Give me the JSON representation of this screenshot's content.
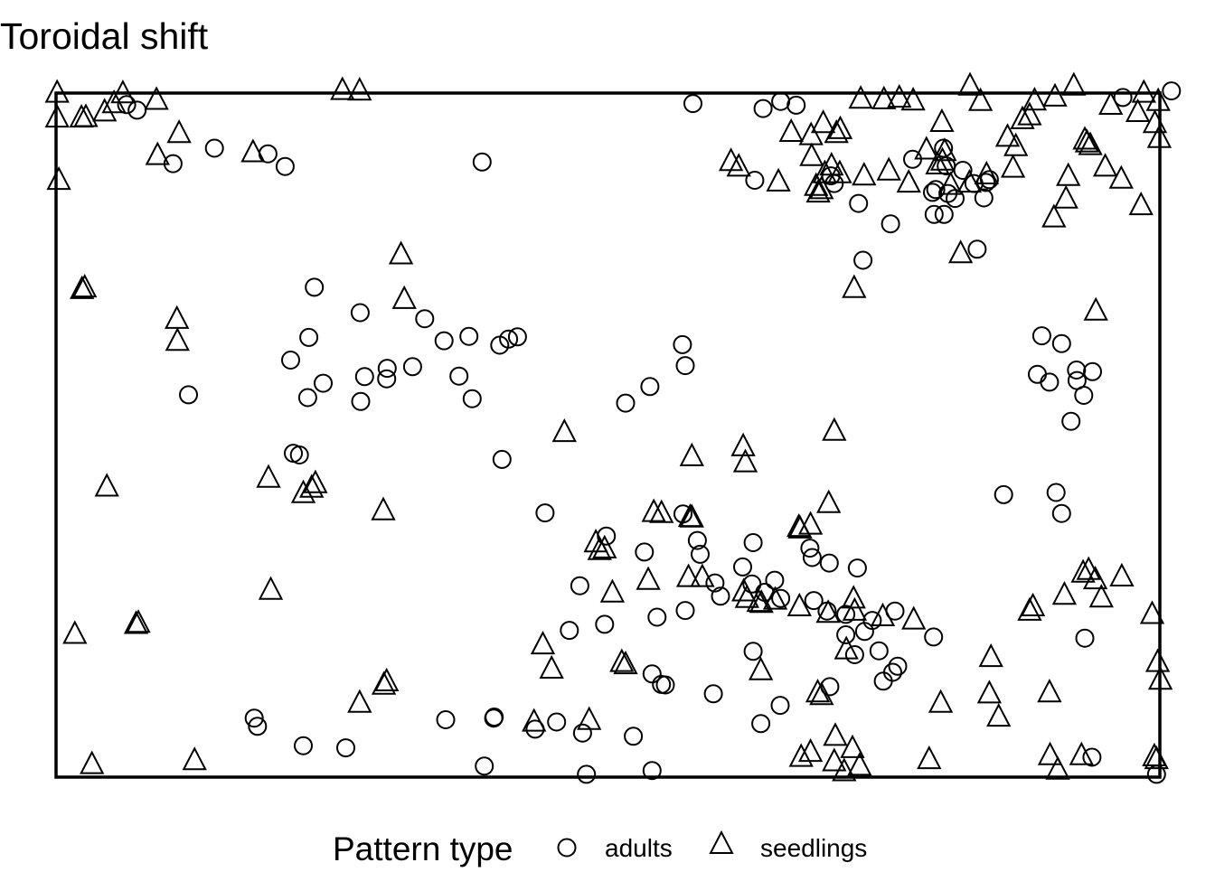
{
  "chart_data": {
    "type": "scatter",
    "title": "Toroidal shift",
    "xlabel": "",
    "ylabel": "",
    "xlim": [
      0,
      200
    ],
    "ylim": [
      0,
      124
    ],
    "axes_visible": false,
    "grid": false,
    "legend": {
      "title": "Pattern type",
      "placement": "bottom",
      "entries": [
        {
          "label": "adults",
          "marker": "circle"
        },
        {
          "label": "seedlings",
          "marker": "triangle"
        }
      ]
    },
    "series": [
      {
        "name": "adults",
        "marker": "circle",
        "color": "#000000",
        "points": [
          [
            12.8,
            121.9
          ],
          [
            14.7,
            120.9
          ],
          [
            21.2,
            111.2
          ],
          [
            28.7,
            114.0
          ],
          [
            41.5,
            110.7
          ],
          [
            38.4,
            113.0
          ],
          [
            77.2,
            111.5
          ],
          [
            115.4,
            122.1
          ],
          [
            128.1,
            121.2
          ],
          [
            126.6,
            108.2
          ],
          [
            131.3,
            122.5
          ],
          [
            134.1,
            121.8
          ],
          [
            140.4,
            109.0
          ],
          [
            141.0,
            107.6
          ],
          [
            145.4,
            104.0
          ],
          [
            151.2,
            100.3
          ],
          [
            155.2,
            112.0
          ],
          [
            158.8,
            106.0
          ],
          [
            159.4,
            106.5
          ],
          [
            160.8,
            114.0
          ],
          [
            161.3,
            110.8
          ],
          [
            159.1,
            102.0
          ],
          [
            166.9,
            95.7
          ],
          [
            169.1,
            108.3
          ],
          [
            164.3,
            110.0
          ],
          [
            166.3,
            107.6
          ],
          [
            146.2,
            93.7
          ],
          [
            162.9,
            104.9
          ],
          [
            168.5,
            107.8
          ],
          [
            168.1,
            105.0
          ],
          [
            161.6,
            105.8
          ],
          [
            160.9,
            102.0
          ],
          [
            45.6,
            68.8
          ],
          [
            46.8,
            88.8
          ],
          [
            45.8,
            79.7
          ],
          [
            42.5,
            75.6
          ],
          [
            48.4,
            71.4
          ],
          [
            55.1,
            84.2
          ],
          [
            55.9,
            72.6
          ],
          [
            59.9,
            72.2
          ],
          [
            55.2,
            68.1
          ],
          [
            64.6,
            74.4
          ],
          [
            66.8,
            83.1
          ],
          [
            60.0,
            74.1
          ],
          [
            70.3,
            79.1
          ],
          [
            73.0,
            72.7
          ],
          [
            74.8,
            79.9
          ],
          [
            80.4,
            78.3
          ],
          [
            75.4,
            68.6
          ],
          [
            83.6,
            79.8
          ],
          [
            82.0,
            79.4
          ],
          [
            80.8,
            57.6
          ],
          [
            113.5,
            78.4
          ],
          [
            114.0,
            74.6
          ],
          [
            107.6,
            70.8
          ],
          [
            103.2,
            67.8
          ],
          [
            24.0,
            69.3
          ],
          [
            43.0,
            58.7
          ],
          [
            44.1,
            58.4
          ],
          [
            88.6,
            47.9
          ],
          [
            99.7,
            43.7
          ],
          [
            113.6,
            47.7
          ],
          [
            126.3,
            42.5
          ],
          [
            124.4,
            38.1
          ],
          [
            126.1,
            35.0
          ],
          [
            130.2,
            35.7
          ],
          [
            137.0,
            39.8
          ],
          [
            140.1,
            38.8
          ],
          [
            145.2,
            37.9
          ],
          [
            136.6,
            41.5
          ],
          [
            131.3,
            32.4
          ],
          [
            128.4,
            33.5
          ],
          [
            137.3,
            32.0
          ],
          [
            139.7,
            30.1
          ],
          [
            143.1,
            29.5
          ],
          [
            152.0,
            30.1
          ],
          [
            147.9,
            28.4
          ],
          [
            146.5,
            26.4
          ],
          [
            143.1,
            25.8
          ],
          [
            159.0,
            25.4
          ],
          [
            149.1,
            22.9
          ],
          [
            144.7,
            22.2
          ],
          [
            152.5,
            20.1
          ],
          [
            151.6,
            19.0
          ],
          [
            149.9,
            17.4
          ],
          [
            94.9,
            34.7
          ],
          [
            116.7,
            40.4
          ],
          [
            116.2,
            42.9
          ],
          [
            106.6,
            40.8
          ],
          [
            119.4,
            35.2
          ],
          [
            120.4,
            32.8
          ],
          [
            114.0,
            30.2
          ],
          [
            93.0,
            26.6
          ],
          [
            99.4,
            27.7
          ],
          [
            108.0,
            18.7
          ],
          [
            110.4,
            16.7
          ],
          [
            108.9,
            29.0
          ],
          [
            119.1,
            15.1
          ],
          [
            126.3,
            22.8
          ],
          [
            109.7,
            16.8
          ],
          [
            127.7,
            9.7
          ],
          [
            131.2,
            13.0
          ],
          [
            140.2,
            16.4
          ],
          [
            90.7,
            10.0
          ],
          [
            86.8,
            8.7
          ],
          [
            79.3,
            10.7
          ],
          [
            77.6,
            2.0
          ],
          [
            95.4,
            8.0
          ],
          [
            96.1,
            0.5
          ],
          [
            104.6,
            7.4
          ],
          [
            108.0,
            1.2
          ],
          [
            70.6,
            10.4
          ],
          [
            79.4,
            10.9
          ],
          [
            52.5,
            5.3
          ],
          [
            44.8,
            5.7
          ],
          [
            36.5,
            9.2
          ],
          [
            35.9,
            10.7
          ],
          [
            171.7,
            51.2
          ],
          [
            181.2,
            51.6
          ],
          [
            182.2,
            47.8
          ],
          [
            180.0,
            71.6
          ],
          [
            178.6,
            80.0
          ],
          [
            177.8,
            73.0
          ],
          [
            182.2,
            78.6
          ],
          [
            185.0,
            71.9
          ],
          [
            183.9,
            64.5
          ],
          [
            187.8,
            73.5
          ],
          [
            184.9,
            73.8
          ],
          [
            186.2,
            69.2
          ],
          [
            186.4,
            25.2
          ],
          [
            193.3,
            123.2
          ],
          [
            202.1,
            124.4
          ],
          [
            187.7,
            3.6
          ],
          [
            199.4,
            0.5
          ]
        ]
      },
      {
        "name": "seedlings",
        "marker": "triangle",
        "color": "#000000",
        "points": [
          [
            0.2,
            123.9
          ],
          [
            0.2,
            119.4
          ],
          [
            0.5,
            108.1
          ],
          [
            4.6,
            119.4
          ],
          [
            5.4,
            119.5
          ],
          [
            8.8,
            120.5
          ],
          [
            10.5,
            122.0
          ],
          [
            12.1,
            123.8
          ],
          [
            18.2,
            122.6
          ],
          [
            22.3,
            116.6
          ],
          [
            18.4,
            112.6
          ],
          [
            35.7,
            113.1
          ],
          [
            51.9,
            124.4
          ],
          [
            55.0,
            124.3
          ],
          [
            4.7,
            88.3
          ],
          [
            5.2,
            88.6
          ],
          [
            21.9,
            82.9
          ],
          [
            22.0,
            78.9
          ],
          [
            62.5,
            94.6
          ],
          [
            63.1,
            86.5
          ],
          [
            9.2,
            52.5
          ],
          [
            38.5,
            54.1
          ],
          [
            44.8,
            51.3
          ],
          [
            46.3,
            52.3
          ],
          [
            47.0,
            53.1
          ],
          [
            59.3,
            48.2
          ],
          [
            38.9,
            33.8
          ],
          [
            3.4,
            25.8
          ],
          [
            14.5,
            27.6
          ],
          [
            14.9,
            27.8
          ],
          [
            6.5,
            2.2
          ],
          [
            25.1,
            2.9
          ],
          [
            55.0,
            13.3
          ],
          [
            59.9,
            17.2
          ],
          [
            59.4,
            16.6
          ],
          [
            88.2,
            23.9
          ],
          [
            89.8,
            19.5
          ],
          [
            86.6,
            9.9
          ],
          [
            92.1,
            62.4
          ],
          [
            97.8,
            42.4
          ],
          [
            99.4,
            41.3
          ],
          [
            98.5,
            41.0
          ],
          [
            100.8,
            33.3
          ],
          [
            96.6,
            10.2
          ],
          [
            103.2,
            20.3
          ],
          [
            115.2,
            46.9
          ],
          [
            114.9,
            47.0
          ],
          [
            109.7,
            47.7
          ],
          [
            108.3,
            47.9
          ],
          [
            115.2,
            58.0
          ],
          [
            124.5,
            59.8
          ],
          [
            124.9,
            56.9
          ],
          [
            107.3,
            35.6
          ],
          [
            102.5,
            20.7
          ],
          [
            134.8,
            44.9
          ],
          [
            134.6,
            45.2
          ],
          [
            141.0,
            62.6
          ],
          [
            144.5,
            32.2
          ],
          [
            144.7,
            30.0
          ],
          [
            149.8,
            29.0
          ],
          [
            155.4,
            28.4
          ],
          [
            160.3,
            13.3
          ],
          [
            169.4,
            21.6
          ],
          [
            180.0,
            15.2
          ],
          [
            170.8,
            10.8
          ],
          [
            169.1,
            15.0
          ],
          [
            158.2,
            3.1
          ],
          [
            138.7,
            14.7
          ],
          [
            138.0,
            15.2
          ],
          [
            143.2,
            23.0
          ],
          [
            141.2,
            7.3
          ],
          [
            144.3,
            5.1
          ],
          [
            145.6,
            1.9
          ],
          [
            142.8,
            0.9
          ],
          [
            141.0,
            2.7
          ],
          [
            135.0,
            3.5
          ],
          [
            136.7,
            4.4
          ],
          [
            127.7,
            19.2
          ],
          [
            140.0,
            49.5
          ],
          [
            136.7,
            45.6
          ],
          [
            114.6,
            36.1
          ],
          [
            117.1,
            36.1
          ],
          [
            124.6,
            33.5
          ],
          [
            127.3,
            31.6
          ],
          [
            125.2,
            32.3
          ],
          [
            127.8,
            31.4
          ],
          [
            130.3,
            32.0
          ],
          [
            134.7,
            30.8
          ],
          [
            139.9,
            29.6
          ],
          [
            176.4,
            30.0
          ],
          [
            177.0,
            30.8
          ],
          [
            182.7,
            32.9
          ],
          [
            186.1,
            36.9
          ],
          [
            187.1,
            37.4
          ],
          [
            188.3,
            35.7
          ],
          [
            193.1,
            36.2
          ],
          [
            189.4,
            32.4
          ],
          [
            180.1,
            3.8
          ],
          [
            181.5,
            1.2
          ],
          [
            185.8,
            3.8
          ],
          [
            198.6,
            29.4
          ],
          [
            199.6,
            20.7
          ],
          [
            200.1,
            17.5
          ],
          [
            199.4,
            3.1
          ],
          [
            199.0,
            3.6
          ],
          [
            191.1,
            121.7
          ],
          [
            197.1,
            123.9
          ],
          [
            196.0,
            120.4
          ],
          [
            199.7,
            122.4
          ],
          [
            199.1,
            118.4
          ],
          [
            199.9,
            115.7
          ],
          [
            181.0,
            123.2
          ],
          [
            184.4,
            125.2
          ],
          [
            177.3,
            122.5
          ],
          [
            176.4,
            119.8
          ],
          [
            175.1,
            119.1
          ],
          [
            172.4,
            115.9
          ],
          [
            173.9,
            114.2
          ],
          [
            173.4,
            110.3
          ],
          [
            168.6,
            109.1
          ],
          [
            165.5,
            107.6
          ],
          [
            162.1,
            107.2
          ],
          [
            159.7,
            110.9
          ],
          [
            160.6,
            111.6
          ],
          [
            161.0,
            113.3
          ],
          [
            157.7,
            113.6
          ],
          [
            154.5,
            107.6
          ],
          [
            150.9,
            109.8
          ],
          [
            146.4,
            108.9
          ],
          [
            142.0,
            109.3
          ],
          [
            140.5,
            110.7
          ],
          [
            139.3,
            109.3
          ],
          [
            138.7,
            106.4
          ],
          [
            138.1,
            105.8
          ],
          [
            137.7,
            107.0
          ],
          [
            130.9,
            107.8
          ],
          [
            123.7,
            110.5
          ],
          [
            122.3,
            111.5
          ],
          [
            136.9,
            112.4
          ],
          [
            133.2,
            116.8
          ],
          [
            136.8,
            116.2
          ],
          [
            142.1,
            117.3
          ],
          [
            141.4,
            116.6
          ],
          [
            139.0,
            118.4
          ],
          [
            145.8,
            122.8
          ],
          [
            150.0,
            122.7
          ],
          [
            155.3,
            122.5
          ],
          [
            152.8,
            123.0
          ],
          [
            160.5,
            118.6
          ],
          [
            167.5,
            122.4
          ],
          [
            165.6,
            125.2
          ],
          [
            186.8,
            114.9
          ],
          [
            186.4,
            115.4
          ],
          [
            187.4,
            114.4
          ],
          [
            190.1,
            110.5
          ],
          [
            193.0,
            108.3
          ],
          [
            196.6,
            103.5
          ],
          [
            183.4,
            108.8
          ],
          [
            183.0,
            104.7
          ],
          [
            180.8,
            101.3
          ],
          [
            188.4,
            84.4
          ],
          [
            163.9,
            94.8
          ],
          [
            144.6,
            88.5
          ]
        ]
      }
    ]
  }
}
